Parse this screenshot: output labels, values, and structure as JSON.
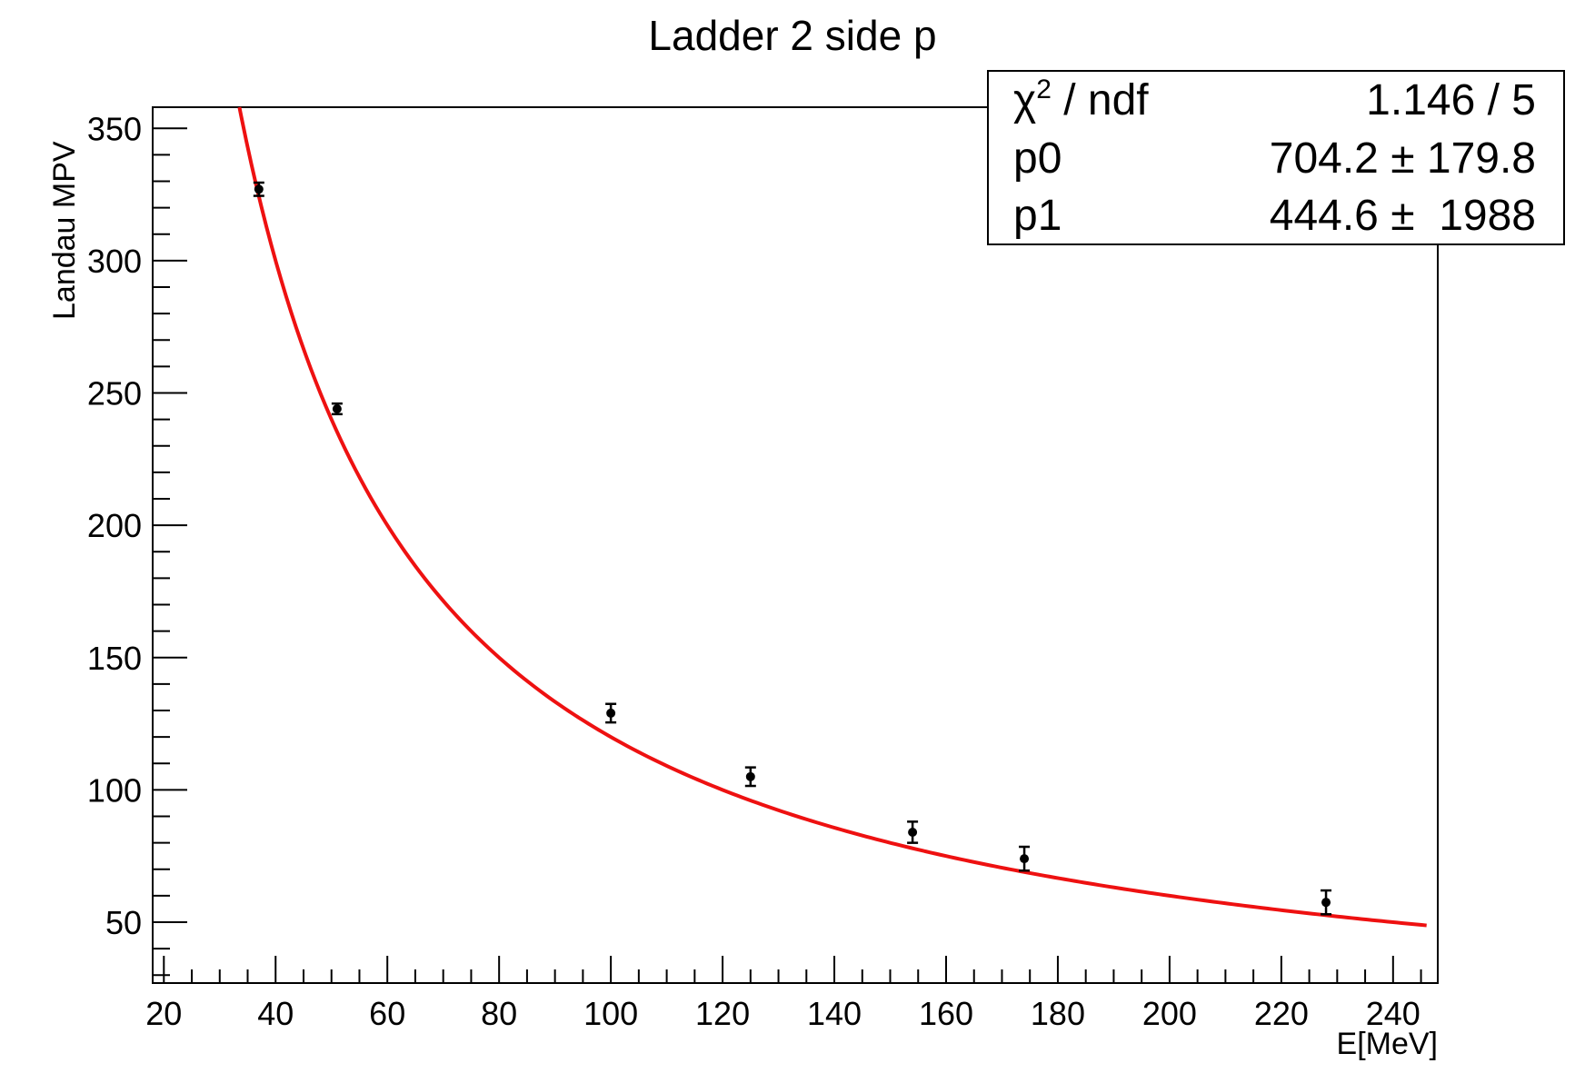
{
  "chart_data": {
    "type": "scatter",
    "title": "Ladder 2 side p",
    "xlabel": "E[MeV]",
    "ylabel": "Landau MPV",
    "xlim": [
      18,
      248
    ],
    "ylim": [
      27,
      358
    ],
    "xticks": [
      20,
      40,
      60,
      80,
      100,
      120,
      140,
      160,
      180,
      200,
      220,
      240
    ],
    "yticks": [
      50,
      100,
      150,
      200,
      250,
      300,
      350
    ],
    "grid": false,
    "series": [
      {
        "points": [
          {
            "x": 37,
            "y": 327,
            "err": 2.5
          },
          {
            "x": 51,
            "y": 244,
            "err": 2
          },
          {
            "x": 100,
            "y": 129,
            "err": 3.5
          },
          {
            "x": 125,
            "y": 105,
            "err": 3.5
          },
          {
            "x": 154,
            "y": 84,
            "err": 4
          },
          {
            "x": 174,
            "y": 74,
            "err": 4.5
          },
          {
            "x": 228,
            "y": 57.5,
            "err": 4.5
          }
        ],
        "color": "#000000"
      }
    ],
    "fit": {
      "color": "#ee1111",
      "x_start": 33,
      "x_end": 246
    },
    "stats_box": {
      "rows": [
        {
          "label_main": "χ",
          "label_sup": "2",
          "label_rest": " / ndf",
          "value": "1.146 / 5"
        },
        {
          "label_main": "p0",
          "label_sup": "",
          "label_rest": "",
          "value": "704.2 ± 179.8"
        },
        {
          "label_main": "p1",
          "label_sup": "",
          "label_rest": "",
          "value": "444.6 ±  1988"
        }
      ]
    }
  }
}
